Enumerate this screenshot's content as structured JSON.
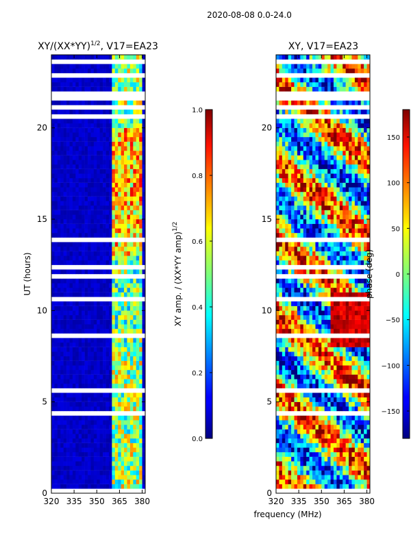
{
  "figure_title": "2020-08-08 0.0-24.0",
  "chart_data": [
    {
      "type": "heatmap",
      "title": "XY/(XX*YY)",
      "title_sup": "1/2",
      "title_suffix": ", V17=EA23",
      "xlabel": "",
      "ylabel": "UT (hours)",
      "xlim": [
        320,
        382
      ],
      "ylim": [
        0,
        24
      ],
      "xticks": [
        320,
        335,
        350,
        365,
        380
      ],
      "yticks": [
        0,
        5,
        10,
        15,
        20
      ],
      "bright_band_mhz": [
        360,
        378
      ],
      "colormap": "jet",
      "colorbar": {
        "label": "XY amp. / (XX*YY amp)",
        "label_sup": "1/2",
        "range": [
          0.0,
          1.0
        ],
        "ticks": [
          "0.0",
          "0.2",
          "0.4",
          "0.6",
          "0.8",
          "1.0"
        ],
        "tick_values": [
          0.0,
          0.2,
          0.4,
          0.6,
          0.8,
          1.0
        ]
      }
    },
    {
      "type": "heatmap",
      "title": "XY, V17=EA23",
      "xlabel": "frequency (MHz)",
      "ylabel": "",
      "xlim": [
        320,
        382
      ],
      "ylim": [
        0,
        24
      ],
      "xticks": [
        320,
        335,
        350,
        365,
        380
      ],
      "yticks": [
        0,
        5,
        10,
        15,
        20
      ],
      "colormap": "jet",
      "colorbar": {
        "label": "phase (deg)",
        "range": [
          -180,
          180
        ],
        "ticks": [
          "150",
          "100",
          "50",
          "0",
          "−50",
          "−100",
          "−150"
        ],
        "tick_values": [
          150,
          100,
          50,
          0,
          -50,
          -100,
          -150
        ]
      }
    }
  ]
}
